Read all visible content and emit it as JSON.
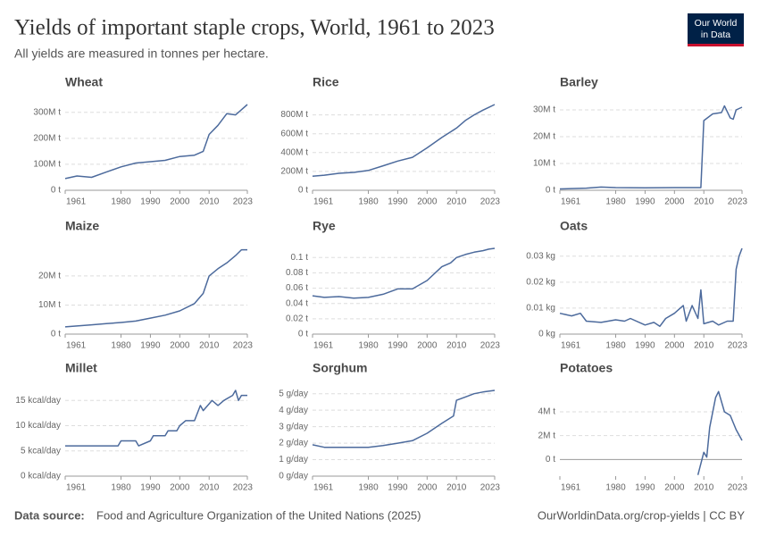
{
  "title": "Yields of important staple crops, World, 1961 to 2023",
  "subtitle": "All yields are measured in tonnes per hectare.",
  "logo": [
    "Our World",
    "in Data"
  ],
  "source_label": "Data source:",
  "source": "Food and Agriculture Organization of the United Nations (2025)",
  "url_license": "OurWorldinData.org/crop-yields | CC BY",
  "chart_data": [
    {
      "type": "line",
      "title": "Wheat",
      "color": "#4c6a9c",
      "grid": true,
      "x": [
        1961,
        1965,
        1970,
        1975,
        1980,
        1985,
        1990,
        1995,
        2000,
        2005,
        2008,
        2010,
        2013,
        2016,
        2019,
        2021,
        2023
      ],
      "values": [
        45000000.0,
        55000000.0,
        50000000.0,
        70000000.0,
        90000000.0,
        105000000.0,
        110000000.0,
        115000000.0,
        130000000.0,
        135000000.0,
        150000000.0,
        215000000.0,
        250000000.0,
        295000000.0,
        290000000.0,
        310000000.0,
        330000000.0
      ],
      "xlim": [
        1961,
        2023
      ],
      "xticks": [
        1961,
        1980,
        1990,
        2000,
        2010,
        2023
      ],
      "ylim": [
        0,
        330000000.0
      ],
      "yticks": [
        {
          "value": 0,
          "label": "0 t"
        },
        {
          "value": 100000000.0,
          "label": "100M t"
        },
        {
          "value": 200000000.0,
          "label": "200M t"
        },
        {
          "value": 300000000.0,
          "label": "300M t"
        }
      ]
    },
    {
      "type": "line",
      "title": "Rice",
      "color": "#4c6a9c",
      "grid": true,
      "x": [
        1961,
        1965,
        1970,
        1975,
        1980,
        1985,
        1990,
        1995,
        2000,
        2005,
        2008,
        2010,
        2013,
        2016,
        2019,
        2021,
        2023
      ],
      "values": [
        150000000.0,
        160000000.0,
        180000000.0,
        190000000.0,
        210000000.0,
        260000000.0,
        310000000.0,
        350000000.0,
        450000000.0,
        560000000.0,
        620000000.0,
        660000000.0,
        740000000.0,
        800000000.0,
        850000000.0,
        880000000.0,
        910000000.0
      ],
      "xlim": [
        1961,
        2023
      ],
      "xticks": [
        1961,
        1980,
        1990,
        2000,
        2010,
        2023
      ],
      "ylim": [
        0,
        910000000.0
      ],
      "yticks": [
        {
          "value": 0,
          "label": "0 t"
        },
        {
          "value": 200000000.0,
          "label": "200M t"
        },
        {
          "value": 400000000.0,
          "label": "400M t"
        },
        {
          "value": 600000000.0,
          "label": "600M t"
        },
        {
          "value": 800000000.0,
          "label": "800M t"
        }
      ]
    },
    {
      "type": "line",
      "title": "Barley",
      "color": "#4c6a9c",
      "grid": true,
      "x": [
        1961,
        1970,
        1975,
        1980,
        1990,
        2000,
        2008,
        2009,
        2010,
        2013,
        2016,
        2017,
        2019,
        2020,
        2021,
        2023
      ],
      "values": [
        500000.0,
        800000.0,
        1200000.0,
        1000000.0,
        900000.0,
        1000000.0,
        1000000.0,
        1000000.0,
        26000000.0,
        28500000.0,
        29000000.0,
        31500000.0,
        27000000.0,
        26500000.0,
        30000000.0,
        31000000.0
      ],
      "xlim": [
        1961,
        2023
      ],
      "xticks": [
        1961,
        1980,
        1990,
        2000,
        2010,
        2023
      ],
      "ylim": [
        0,
        32000000.0
      ],
      "yticks": [
        {
          "value": 0,
          "label": "0 t"
        },
        {
          "value": 10000000.0,
          "label": "10M t"
        },
        {
          "value": 20000000.0,
          "label": "20M t"
        },
        {
          "value": 30000000.0,
          "label": "30M t"
        }
      ]
    },
    {
      "type": "line",
      "title": "Maize",
      "color": "#4c6a9c",
      "grid": true,
      "x": [
        1961,
        1965,
        1970,
        1975,
        1980,
        1985,
        1990,
        1995,
        2000,
        2005,
        2008,
        2010,
        2013,
        2016,
        2019,
        2021,
        2023
      ],
      "values": [
        2500000.0,
        2800000.0,
        3200000.0,
        3600000.0,
        4000000.0,
        4500000.0,
        5500000.0,
        6500000.0,
        8000000.0,
        10500000.0,
        14000000.0,
        20000000.0,
        22500000.0,
        24500000.0,
        27000000.0,
        29000000.0,
        29000000.0
      ],
      "xlim": [
        1961,
        2023
      ],
      "xticks": [
        1961,
        1980,
        1990,
        2000,
        2010,
        2023
      ],
      "ylim": [
        0,
        29500000.0
      ],
      "yticks": [
        {
          "value": 0,
          "label": "0 t"
        },
        {
          "value": 10000000.0,
          "label": "10M t"
        },
        {
          "value": 20000000.0,
          "label": "20M t"
        }
      ]
    },
    {
      "type": "line",
      "title": "Rye",
      "color": "#4c6a9c",
      "grid": true,
      "x": [
        1961,
        1965,
        1970,
        1975,
        1980,
        1985,
        1990,
        1995,
        2000,
        2005,
        2008,
        2010,
        2013,
        2016,
        2019,
        2021,
        2023
      ],
      "values": [
        0.05,
        0.048,
        0.049,
        0.047,
        0.048,
        0.052,
        0.059,
        0.059,
        0.07,
        0.088,
        0.093,
        0.1,
        0.104,
        0.107,
        0.109,
        0.111,
        0.112
      ],
      "xlim": [
        1961,
        2023
      ],
      "xticks": [
        1961,
        1980,
        1990,
        2000,
        2010,
        2023
      ],
      "ylim": [
        0,
        0.112
      ],
      "yticks": [
        {
          "value": 0,
          "label": "0 t"
        },
        {
          "value": 0.02,
          "label": "0.02 t"
        },
        {
          "value": 0.04,
          "label": "0.04 t"
        },
        {
          "value": 0.06,
          "label": "0.06 t"
        },
        {
          "value": 0.08,
          "label": "0.08 t"
        },
        {
          "value": 0.1,
          "label": "0.1 t"
        }
      ]
    },
    {
      "type": "line",
      "title": "Oats",
      "color": "#4c6a9c",
      "grid": true,
      "x": [
        1961,
        1965,
        1968,
        1970,
        1975,
        1980,
        1983,
        1985,
        1990,
        1993,
        1995,
        1997,
        2000,
        2003,
        2004,
        2006,
        2008,
        2009,
        2010,
        2013,
        2015,
        2018,
        2020,
        2021,
        2022,
        2023
      ],
      "values": [
        0.008,
        0.007,
        0.008,
        0.005,
        0.0045,
        0.0055,
        0.005,
        0.006,
        0.0035,
        0.0045,
        0.003,
        0.006,
        0.008,
        0.011,
        0.005,
        0.011,
        0.006,
        0.017,
        0.004,
        0.005,
        0.0035,
        0.005,
        0.005,
        0.025,
        0.03,
        0.033
      ],
      "xlim": [
        1961,
        2023
      ],
      "xticks": [
        1961,
        1980,
        1990,
        2000,
        2010,
        2023
      ],
      "ylim": [
        0,
        0.033
      ],
      "yticks": [
        {
          "value": 0,
          "label": "0 kg"
        },
        {
          "value": 0.01,
          "label": "0.01 kg"
        },
        {
          "value": 0.02,
          "label": "0.02 kg"
        },
        {
          "value": 0.03,
          "label": "0.03 kg"
        }
      ]
    },
    {
      "type": "line",
      "title": "Millet",
      "color": "#4c6a9c",
      "grid": true,
      "x": [
        1961,
        1979,
        1980,
        1985,
        1986,
        1990,
        1991,
        1995,
        1996,
        1999,
        2000,
        2002,
        2005,
        2007,
        2008,
        2011,
        2013,
        2015,
        2018,
        2019,
        2020,
        2021,
        2023
      ],
      "values": [
        6,
        6,
        7,
        7,
        6,
        7,
        8,
        8,
        9,
        9,
        10,
        11,
        11,
        14,
        13,
        15,
        14,
        15,
        16,
        17,
        15,
        16,
        16
      ],
      "xlim": [
        1961,
        2023
      ],
      "xticks": [
        1961,
        1980,
        1990,
        2000,
        2010,
        2023
      ],
      "ylim": [
        0,
        17
      ],
      "yticks": [
        {
          "value": 0,
          "label": "0 kcal/day"
        },
        {
          "value": 5,
          "label": "5 kcal/day"
        },
        {
          "value": 10,
          "label": "10 kcal/day"
        },
        {
          "value": 15,
          "label": "15 kcal/day"
        }
      ]
    },
    {
      "type": "line",
      "title": "Sorghum",
      "color": "#4c6a9c",
      "grid": true,
      "x": [
        1961,
        1965,
        1970,
        1975,
        1980,
        1985,
        1990,
        1995,
        2000,
        2005,
        2009,
        2010,
        2013,
        2016,
        2019,
        2023
      ],
      "values": [
        1.9,
        1.75,
        1.75,
        1.75,
        1.75,
        1.85,
        2.0,
        2.15,
        2.6,
        3.2,
        3.65,
        4.6,
        4.8,
        5.0,
        5.1,
        5.2
      ],
      "xlim": [
        1961,
        2023
      ],
      "xticks": [
        1961,
        1980,
        1990,
        2000,
        2010,
        2023
      ],
      "ylim": [
        0,
        5.2
      ],
      "yticks": [
        {
          "value": 0,
          "label": "0 g/day"
        },
        {
          "value": 1,
          "label": "1 g/day"
        },
        {
          "value": 2,
          "label": "2 g/day"
        },
        {
          "value": 3,
          "label": "3 g/day"
        },
        {
          "value": 4,
          "label": "4 g/day"
        },
        {
          "value": 5,
          "label": "5 g/day"
        }
      ]
    },
    {
      "type": "line",
      "title": "Potatoes",
      "color": "#4c6a9c",
      "grid": true,
      "x": [
        2008,
        2010,
        2011,
        2012,
        2014,
        2015,
        2017,
        2019,
        2021,
        2023
      ],
      "values": [
        -1300000.0,
        600000.0,
        200000.0,
        2700000.0,
        5200000.0,
        5700000.0,
        4000000.0,
        3700000.0,
        2500000.0,
        1600000.0
      ],
      "xlim": [
        1961,
        2023
      ],
      "xticks": [
        1961,
        1980,
        1990,
        2000,
        2010,
        2023
      ],
      "ylim": [
        -1400000.0,
        5800000.0
      ],
      "yticks": [
        {
          "value": 0,
          "label": "0 t"
        },
        {
          "value": 2000000.0,
          "label": "2M t"
        },
        {
          "value": 4000000.0,
          "label": "4M t"
        }
      ]
    }
  ]
}
